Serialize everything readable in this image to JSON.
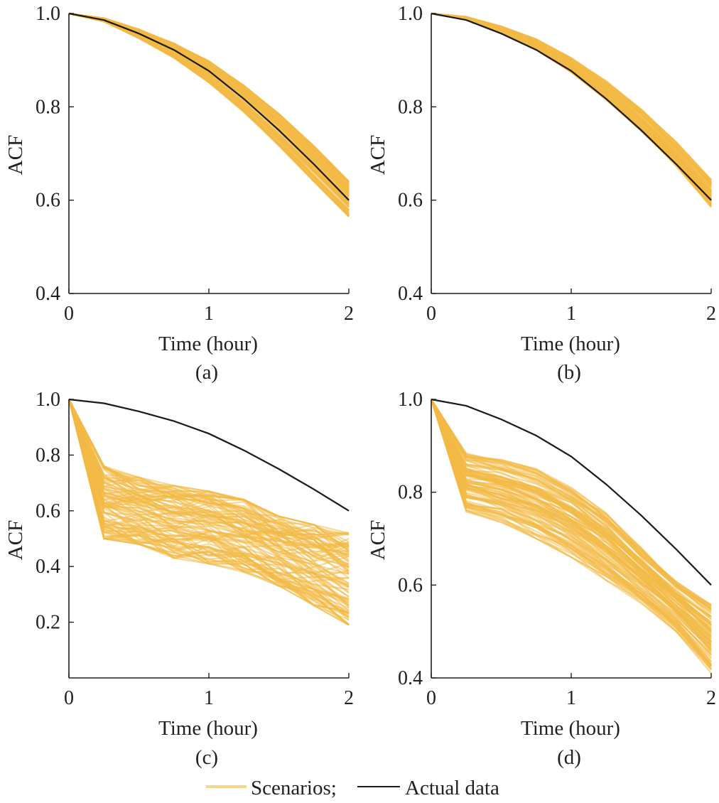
{
  "legend": {
    "scenarios_label": "Scenarios;",
    "actual_label": "Actual data",
    "scenarios_color": "#f2b945",
    "actual_color": "#1a1a1a"
  },
  "chart_data": [
    {
      "type": "line",
      "panel_label": "(a)",
      "xlabel": "Time (hour)",
      "ylabel": "ACF",
      "xlim": [
        0,
        2
      ],
      "ylim": [
        0.4,
        1.0
      ],
      "xticks": [
        "0",
        "1",
        "2"
      ],
      "yticks": [
        "0.4",
        "0.6",
        "0.8",
        "1.0"
      ],
      "x": [
        0,
        0.25,
        0.5,
        0.75,
        1.0,
        1.25,
        1.5,
        1.75,
        2.0
      ],
      "series": [
        {
          "name": "Actual data",
          "values": [
            1.0,
            0.986,
            0.957,
            0.922,
            0.877,
            0.817,
            0.75,
            0.677,
            0.6
          ]
        }
      ],
      "scenarios": {
        "count": 100,
        "band_low": [
          1.0,
          0.983,
          0.947,
          0.905,
          0.852,
          0.788,
          0.717,
          0.64,
          0.565
        ],
        "band_high": [
          1.0,
          0.99,
          0.966,
          0.936,
          0.898,
          0.846,
          0.785,
          0.716,
          0.64
        ]
      }
    },
    {
      "type": "line",
      "panel_label": "(b)",
      "xlabel": "Time (hour)",
      "ylabel": "ACF",
      "xlim": [
        0,
        2
      ],
      "ylim": [
        0.4,
        1.0
      ],
      "xticks": [
        "0",
        "1",
        "2"
      ],
      "yticks": [
        "0.4",
        "0.6",
        "0.8",
        "1.0"
      ],
      "x": [
        0,
        0.25,
        0.5,
        0.75,
        1.0,
        1.25,
        1.5,
        1.75,
        2.0
      ],
      "series": [
        {
          "name": "Actual data",
          "values": [
            1.0,
            0.986,
            0.957,
            0.922,
            0.877,
            0.817,
            0.75,
            0.677,
            0.6
          ]
        }
      ],
      "scenarios": {
        "count": 100,
        "band_low": [
          1.0,
          0.988,
          0.96,
          0.922,
          0.874,
          0.815,
          0.748,
          0.672,
          0.585
        ],
        "band_high": [
          1.0,
          0.993,
          0.973,
          0.945,
          0.905,
          0.855,
          0.795,
          0.725,
          0.645
        ]
      }
    },
    {
      "type": "line",
      "panel_label": "(c)",
      "xlabel": "Time (hour)",
      "ylabel": "ACF",
      "xlim": [
        0,
        2
      ],
      "ylim": [
        0.0,
        1.0
      ],
      "xticks": [
        "0",
        "1",
        "2"
      ],
      "yticks": [
        "0.2",
        "0.4",
        "0.6",
        "0.8",
        "1.0"
      ],
      "x": [
        0,
        0.25,
        0.5,
        0.75,
        1.0,
        1.25,
        1.5,
        1.75,
        2.0
      ],
      "series": [
        {
          "name": "Actual data",
          "values": [
            1.0,
            0.986,
            0.957,
            0.922,
            0.877,
            0.817,
            0.75,
            0.677,
            0.6
          ]
        }
      ],
      "scenarios": {
        "count": 100,
        "band_low": [
          1.0,
          0.5,
          0.48,
          0.43,
          0.41,
          0.38,
          0.33,
          0.26,
          0.19
        ],
        "band_high": [
          1.0,
          0.76,
          0.72,
          0.69,
          0.67,
          0.64,
          0.58,
          0.55,
          0.52
        ]
      }
    },
    {
      "type": "line",
      "panel_label": "(d)",
      "xlabel": "Time (hour)",
      "ylabel": "ACF",
      "xlim": [
        0,
        2
      ],
      "ylim": [
        0.4,
        1.0
      ],
      "xticks": [
        "0",
        "1",
        "2"
      ],
      "yticks": [
        "0.4",
        "0.6",
        "0.8",
        "1.0"
      ],
      "x": [
        0,
        0.25,
        0.5,
        0.75,
        1.0,
        1.25,
        1.5,
        1.75,
        2.0
      ],
      "series": [
        {
          "name": "Actual data",
          "values": [
            1.0,
            0.986,
            0.957,
            0.922,
            0.877,
            0.817,
            0.75,
            0.677,
            0.6
          ]
        }
      ],
      "scenarios": {
        "count": 100,
        "band_low": [
          1.0,
          0.755,
          0.735,
          0.7,
          0.66,
          0.61,
          0.56,
          0.5,
          0.41
        ],
        "band_high": [
          1.0,
          0.885,
          0.87,
          0.85,
          0.81,
          0.755,
          0.68,
          0.61,
          0.56
        ]
      }
    }
  ]
}
